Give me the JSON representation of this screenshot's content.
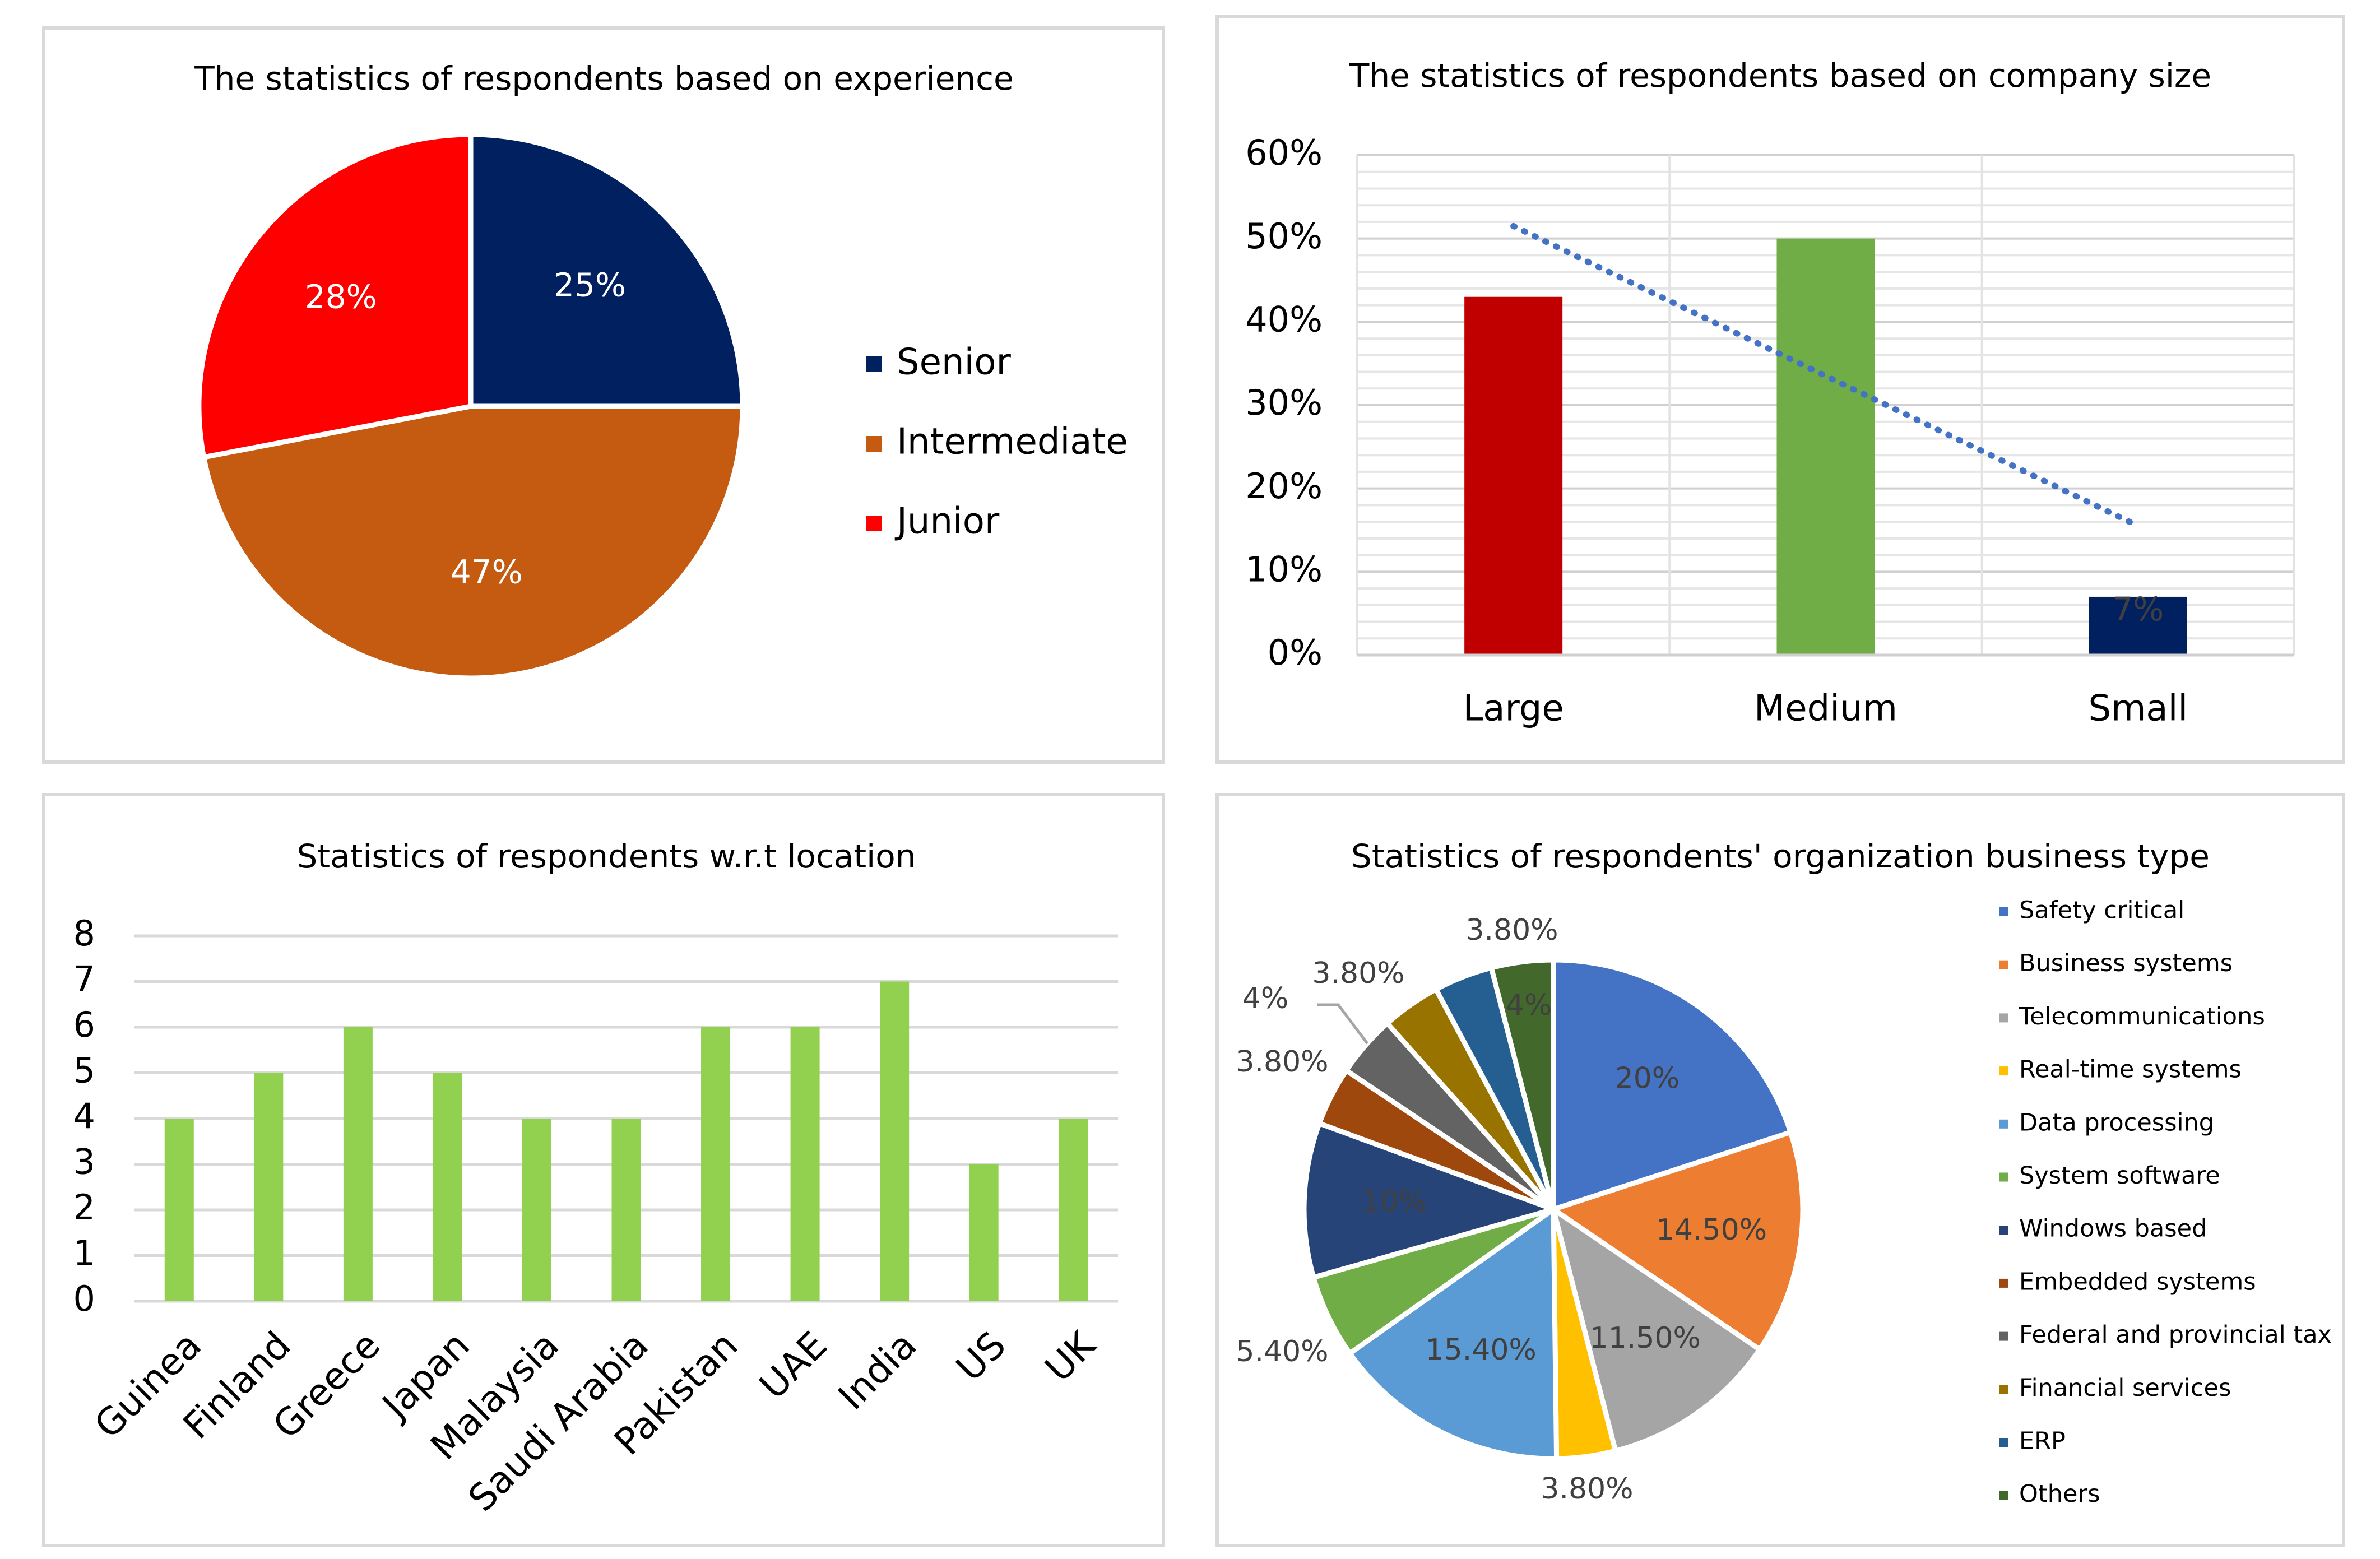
{
  "chart_data": [
    {
      "type": "pie",
      "title": "The statistics of respondents based on experience",
      "categories": [
        "Senior",
        "Intermediate",
        "Junior"
      ],
      "values": [
        25,
        47,
        28
      ],
      "labels": [
        "25%",
        "47%",
        "28%"
      ],
      "colors": [
        "#002060",
        "#C55A11",
        "#FF0000"
      ],
      "legend": "right"
    },
    {
      "type": "bar",
      "title": "The statistics of respondents based on company size",
      "categories": [
        "Large",
        "Medium",
        "Small"
      ],
      "values": [
        43,
        50,
        7
      ],
      "colors": [
        "#C00000",
        "#70AD47",
        "#002060"
      ],
      "data_labels": [
        "",
        "",
        "7%"
      ],
      "yticks": [
        "0%",
        "10%",
        "20%",
        "30%",
        "40%",
        "50%",
        "60%"
      ],
      "ylim": [
        0,
        60
      ],
      "trendline": {
        "style": "dotted",
        "color": "#4472C4",
        "start": 51.5,
        "end": 15.5
      },
      "grid": true
    },
    {
      "type": "bar",
      "title": "Statistics of respondents w.r.t location",
      "categories": [
        "Guinea",
        "Finland",
        "Greece",
        "Japan",
        "Malaysia",
        "Saudi Arabia",
        "Pakistan",
        "UAE",
        "India",
        "US",
        "UK"
      ],
      "values": [
        4,
        5,
        6,
        5,
        4,
        4,
        6,
        6,
        7,
        3,
        4
      ],
      "color": "#92D050",
      "yticks": [
        "0",
        "1",
        "2",
        "3",
        "4",
        "5",
        "6",
        "7",
        "8"
      ],
      "ylim": [
        0,
        8
      ],
      "grid": true
    },
    {
      "type": "pie",
      "title": "Statistics of respondents' organization business type",
      "categories": [
        "Safety critical",
        "Business systems",
        "Telecommunications",
        "Real-time systems",
        "Data processing",
        "System software",
        "Windows based",
        "Embedded systems",
        "Federal and provincial tax",
        "Financial services",
        "ERP",
        "Others"
      ],
      "values": [
        20,
        14.5,
        11.5,
        3.8,
        15.4,
        5.4,
        10,
        3.8,
        4,
        3.8,
        3.8,
        4
      ],
      "labels": [
        "20%",
        "14.50%",
        "11.50%",
        "3.80%",
        "15.40%",
        "5.40%",
        "10%",
        "3.80%",
        "4%",
        "3.80%",
        "3.80%",
        "4%"
      ],
      "colors": [
        "#4472C4",
        "#ED7D31",
        "#A5A5A5",
        "#FFC000",
        "#5B9BD5",
        "#70AD47",
        "#264478",
        "#9E480E",
        "#636363",
        "#997300",
        "#255E91",
        "#43682B"
      ],
      "legend": "right"
    }
  ]
}
